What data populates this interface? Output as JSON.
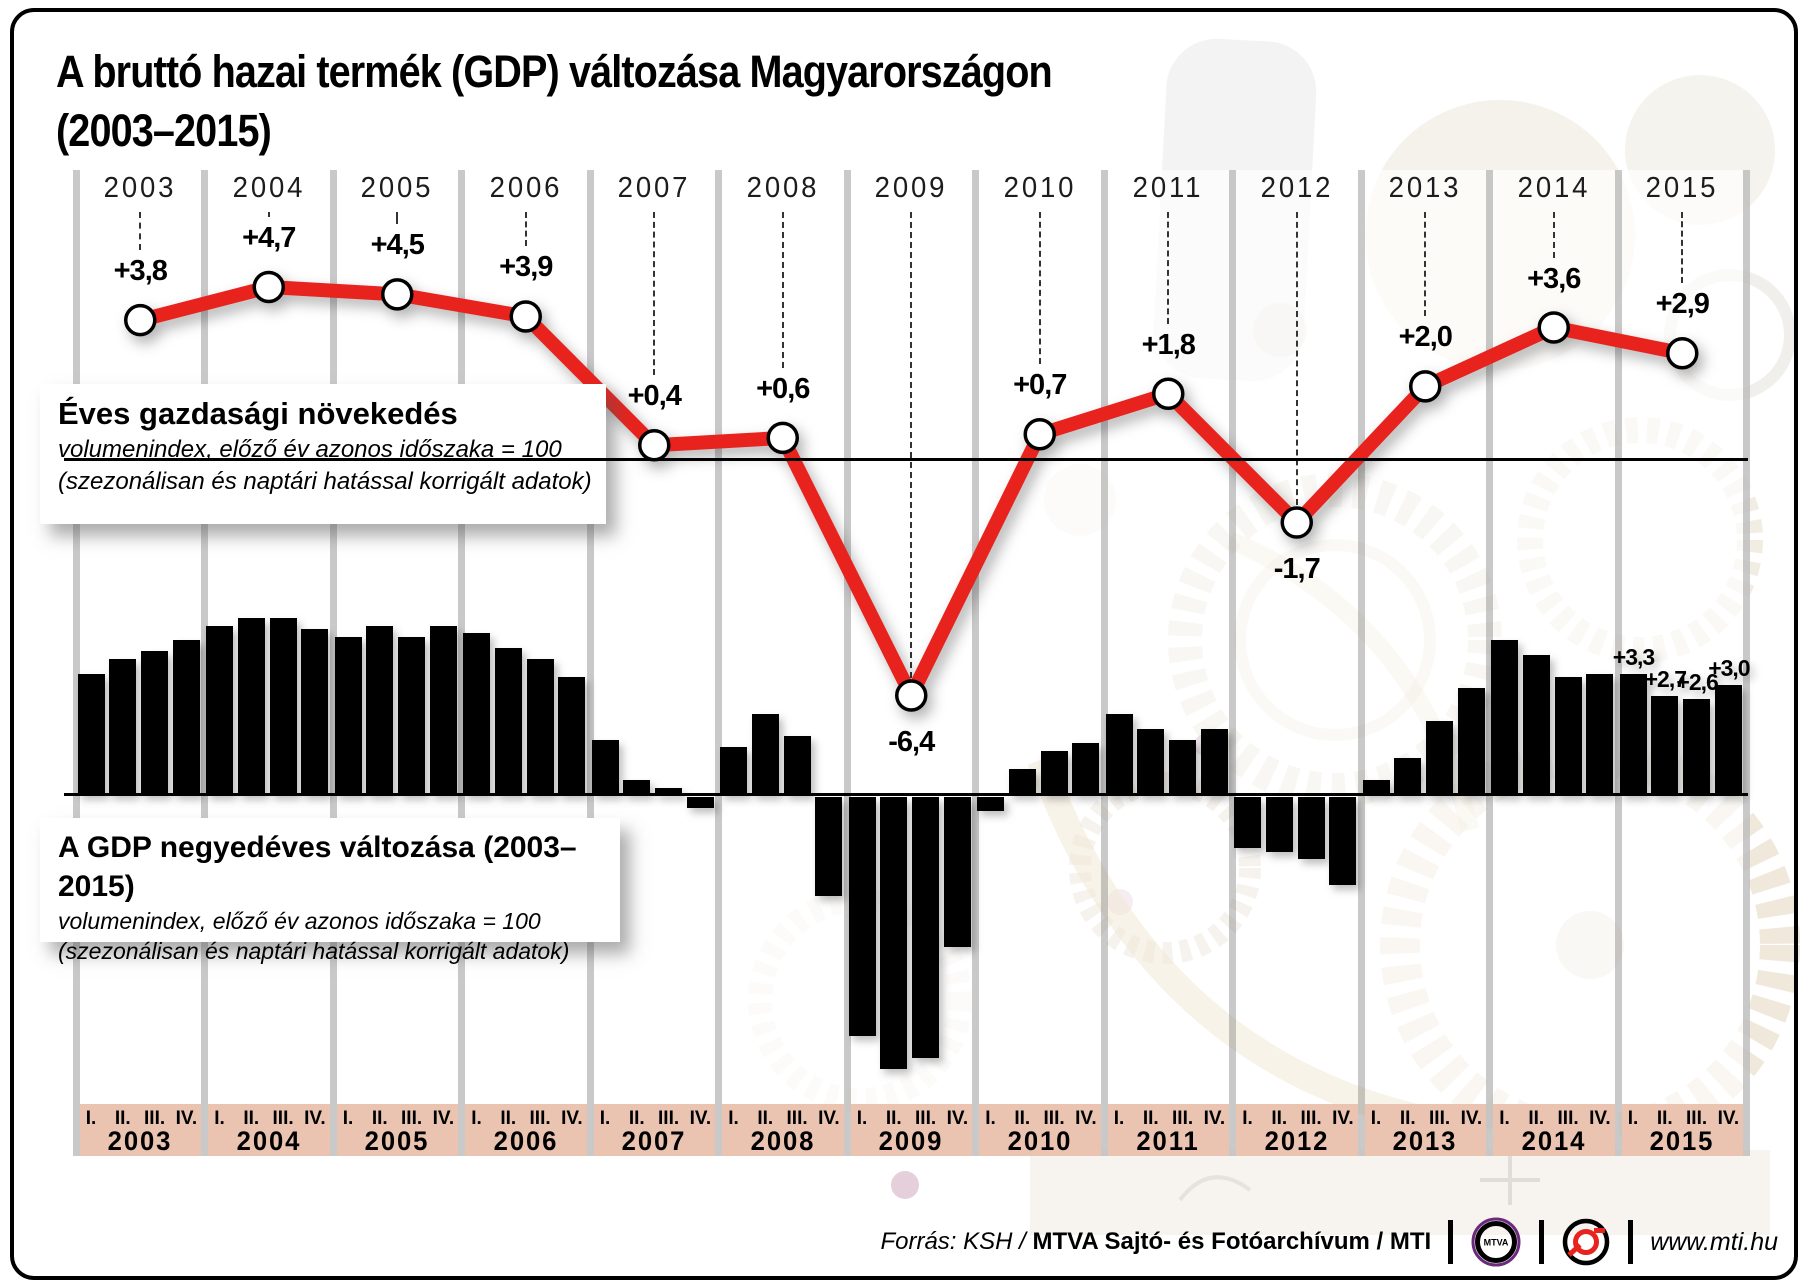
{
  "header": {
    "title_line1": "A bruttó hazai termék (GDP) változása Magyarországon",
    "title_line2": "(2003–2015)"
  },
  "annual_box": {
    "title": "Éves gazdasági növekedés",
    "sub1": "volumenindex, előző év azonos időszaka = 100",
    "sub2": "(szezonálisan és naptári hatással korrigált adatok)"
  },
  "quarterly_box": {
    "title": "A GDP negyedéves változása (2003–2015)",
    "sub1": "volumenindex, előző év azonos időszaka = 100",
    "sub2": "(szezonálisan és naptári hatással korrigált adatok)"
  },
  "axis": {
    "years": [
      2003,
      2004,
      2005,
      2006,
      2007,
      2008,
      2009,
      2010,
      2011,
      2012,
      2013,
      2014,
      2015
    ],
    "quarters": [
      "I.",
      "II.",
      "III.",
      "IV."
    ]
  },
  "chart_data": [
    {
      "type": "line",
      "name": "annual-gdp-change",
      "title": "Éves gazdasági növekedés",
      "unit": "percent, volume index vs same period of previous year = 100",
      "categories": [
        2003,
        2004,
        2005,
        2006,
        2007,
        2008,
        2009,
        2010,
        2011,
        2012,
        2013,
        2014,
        2015
      ],
      "values": [
        3.8,
        4.7,
        4.5,
        3.9,
        0.4,
        0.6,
        -6.4,
        0.7,
        1.8,
        -1.7,
        2.0,
        3.6,
        2.9
      ],
      "point_labels": [
        "+3,8",
        "+4,7",
        "+4,5",
        "+3,9",
        "+0,4",
        "+0,6",
        "-6,4",
        "+0,7",
        "+1,8",
        "-1,7",
        "+2,0",
        "+3,6",
        "+2,9"
      ],
      "labels_below_indices": [
        6,
        9
      ],
      "line_color": "#e8231e",
      "marker_fill": "#ffffff",
      "marker_stroke": "#000000",
      "zero_line": true,
      "legend_position": "none",
      "grid": "vertical-year-dividers"
    },
    {
      "type": "bar",
      "name": "quarterly-gdp-change",
      "title": "A GDP negyedéves változása (2003–2015)",
      "unit": "percent, volume index vs same period of previous year = 100",
      "years": [
        2003,
        2004,
        2005,
        2006,
        2007,
        2008,
        2009,
        2010,
        2011,
        2012,
        2013,
        2014,
        2015
      ],
      "quarters": [
        "I.",
        "II.",
        "III.",
        "IV."
      ],
      "values_by_year": [
        [
          3.3,
          3.7,
          3.9,
          4.2
        ],
        [
          4.6,
          4.8,
          4.8,
          4.5
        ],
        [
          4.3,
          4.6,
          4.3,
          4.6
        ],
        [
          4.4,
          4.0,
          3.7,
          3.2
        ],
        [
          1.5,
          0.4,
          0.2,
          -0.3
        ],
        [
          1.3,
          2.2,
          1.6,
          -2.7
        ],
        [
          -6.5,
          -7.4,
          -7.1,
          -4.1
        ],
        [
          -0.4,
          0.7,
          1.2,
          1.4
        ],
        [
          2.2,
          1.8,
          1.5,
          1.8
        ],
        [
          -1.4,
          -1.5,
          -1.7,
          -2.4
        ],
        [
          0.4,
          1.0,
          2.0,
          2.9
        ],
        [
          4.2,
          3.8,
          3.2,
          3.3
        ],
        [
          3.3,
          2.7,
          2.6,
          3.0
        ]
      ],
      "bar_color": "#000000",
      "annotations": {
        "year_index": 12,
        "labels": [
          "+3,3",
          "+2,7",
          "+2,6",
          "+3,0"
        ]
      }
    }
  ],
  "footer": {
    "source_italic": "Forrás: KSH / ",
    "source_bold": "MTVA Sajtó- és Fotóarchívum / MTI",
    "mtva_logo": "MTVA",
    "site": "www.mti.hu"
  },
  "colors": {
    "line_red": "#e8231e",
    "pink_band": "#eac4b1",
    "bar_black": "#000000",
    "divider_gray": "#bcbcbc",
    "mtva_purple": "#6b2a7d"
  }
}
